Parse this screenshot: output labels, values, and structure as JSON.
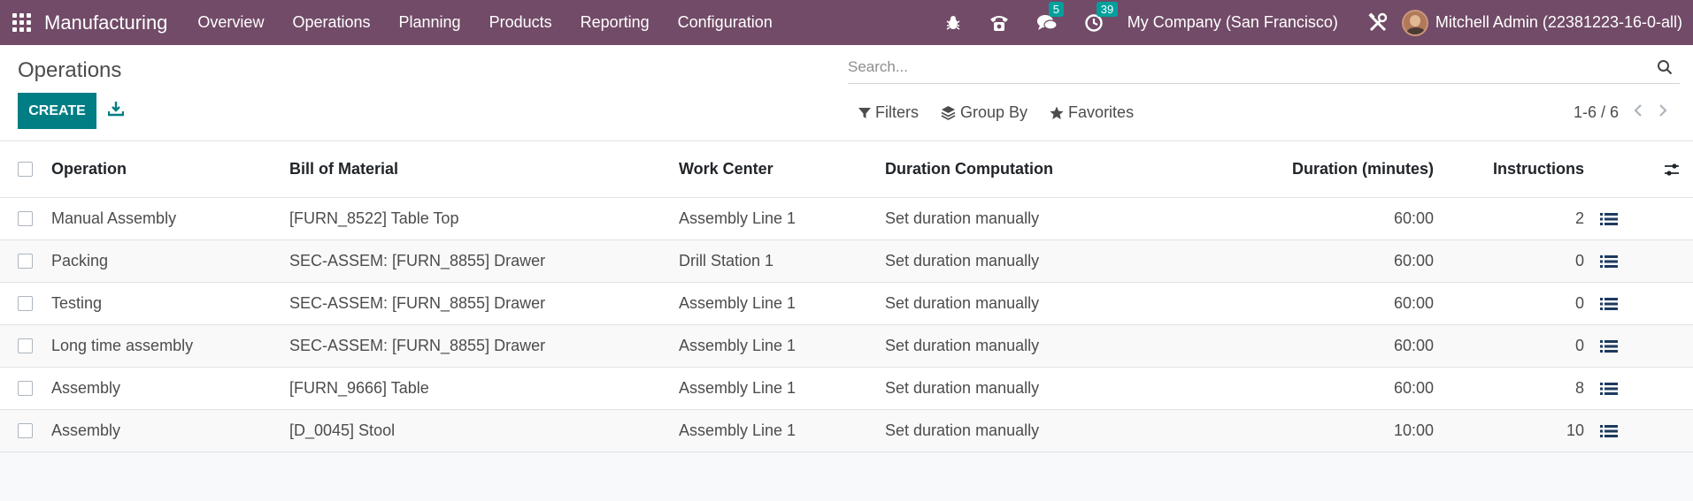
{
  "topbar": {
    "app_name": "Manufacturing",
    "menu": [
      "Overview",
      "Operations",
      "Planning",
      "Products",
      "Reporting",
      "Configuration"
    ],
    "messages_badge": "5",
    "activities_badge": "39",
    "company": "My Company (San Francisco)",
    "user": "Mitchell Admin (22381223-16-0-all)"
  },
  "control": {
    "title": "Operations",
    "create_label": "CREATE",
    "search_placeholder": "Search...",
    "filters_label": "Filters",
    "groupby_label": "Group By",
    "favorites_label": "Favorites",
    "pager": "1-6 / 6"
  },
  "table": {
    "headers": {
      "operation": "Operation",
      "bom": "Bill of Material",
      "work_center": "Work Center",
      "duration_computation": "Duration Computation",
      "duration": "Duration (minutes)",
      "instructions": "Instructions"
    },
    "rows": [
      {
        "operation": "Manual Assembly",
        "bom": "[FURN_8522] Table Top",
        "work_center": "Assembly Line 1",
        "duration_computation": "Set duration manually",
        "duration": "60:00",
        "instructions": "2"
      },
      {
        "operation": "Packing",
        "bom": "SEC-ASSEM: [FURN_8855] Drawer",
        "work_center": "Drill Station 1",
        "duration_computation": "Set duration manually",
        "duration": "60:00",
        "instructions": "0"
      },
      {
        "operation": "Testing",
        "bom": "SEC-ASSEM: [FURN_8855] Drawer",
        "work_center": "Assembly Line 1",
        "duration_computation": "Set duration manually",
        "duration": "60:00",
        "instructions": "0"
      },
      {
        "operation": "Long time assembly",
        "bom": "SEC-ASSEM: [FURN_8855] Drawer",
        "work_center": "Assembly Line 1",
        "duration_computation": "Set duration manually",
        "duration": "60:00",
        "instructions": "0"
      },
      {
        "operation": "Assembly",
        "bom": "[FURN_9666] Table",
        "work_center": "Assembly Line 1",
        "duration_computation": "Set duration manually",
        "duration": "60:00",
        "instructions": "8"
      },
      {
        "operation": "Assembly",
        "bom": "[D_0045] Stool",
        "work_center": "Assembly Line 1",
        "duration_computation": "Set duration manually",
        "duration": "10:00",
        "instructions": "10"
      }
    ]
  },
  "colors": {
    "topbar": "#714b67",
    "primary_button": "#017e84",
    "badge": "#00a09d",
    "list_icon": "#1d3a5f"
  }
}
